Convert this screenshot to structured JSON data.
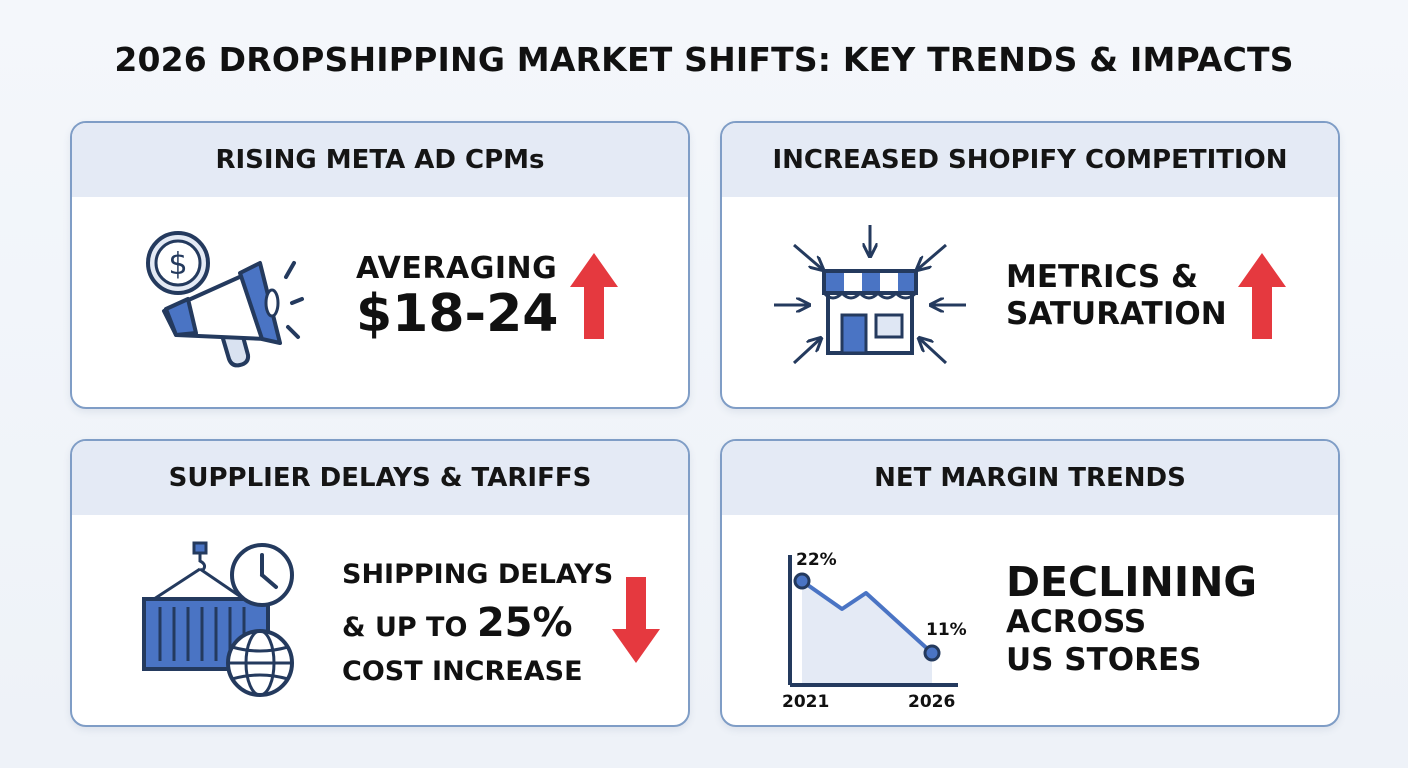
{
  "title": "2026 DROPSHIPPING MARKET SHIFTS: KEY TRENDS & IMPACTS",
  "colors": {
    "accent_blue": "#4a74c4",
    "icon_outline": "#243a5e",
    "arrow_red": "#e5393f",
    "header_bg": "#e4eaf5",
    "card_border": "#7f9dc6"
  },
  "cards": [
    {
      "header": "RISING META AD CPMs",
      "icon": "dollar-megaphone-icon",
      "lines": [
        "AVERAGING",
        "$18-24"
      ],
      "trend": "up"
    },
    {
      "header": "INCREASED SHOPIFY COMPETITION",
      "icon": "storefront-arrows-icon",
      "lines": [
        "METRICS &",
        "SATURATION"
      ],
      "trend": "up"
    },
    {
      "header": "SUPPLIER DELAYS & TARIFFS",
      "icon": "container-clock-globe-icon",
      "lines": [
        "SHIPPING DELAYS",
        "& UP TO ",
        "25%",
        "COST INCREASE"
      ],
      "trend": "down"
    },
    {
      "header": "NET MARGIN TRENDS",
      "icon": "margin-line-chart-icon",
      "lines": [
        "DECLINING",
        "ACROSS",
        "US STORES"
      ],
      "trend": "down",
      "chart": {
        "start_year": "2021",
        "end_year": "2026",
        "start_label": "22%",
        "end_label": "11%"
      }
    }
  ],
  "chart_data": {
    "type": "line",
    "x": [
      "2021",
      "2026"
    ],
    "series": [
      {
        "values": [
          22,
          11
        ]
      }
    ]
  }
}
